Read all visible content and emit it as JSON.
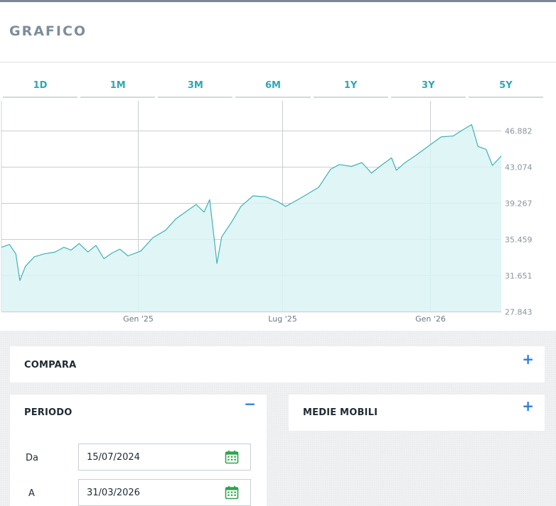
{
  "page": {
    "title": "GRAFICO"
  },
  "range_tabs": [
    "1D",
    "1M",
    "3M",
    "6M",
    "1Y",
    "3Y",
    "5Y"
  ],
  "chart_data": {
    "type": "area",
    "x_tick_labels": [
      "Gen '25",
      "Lug '25",
      "Gen '26"
    ],
    "y_ticks": [
      27.843,
      31.651,
      35.459,
      39.267,
      43.074,
      46.882
    ],
    "y_tick_labels": [
      "27.843",
      "31.651",
      "35.459",
      "39.267",
      "43.074",
      "46.882"
    ],
    "ylim": [
      27.843,
      50.0
    ],
    "xlim": [
      "2024-07-15",
      "2026-03-31"
    ],
    "grid": true,
    "line_color": "#3fb1b6",
    "fill_color": "#d9f3f4",
    "series": [
      {
        "values": [
          [
            "2024-07-15",
            34.6
          ],
          [
            "2024-07-25",
            34.9
          ],
          [
            "2024-08-02",
            33.9
          ],
          [
            "2024-08-07",
            31.1
          ],
          [
            "2024-08-14",
            32.6
          ],
          [
            "2024-08-25",
            33.6
          ],
          [
            "2024-09-06",
            33.9
          ],
          [
            "2024-09-20",
            34.1
          ],
          [
            "2024-10-01",
            34.6
          ],
          [
            "2024-10-10",
            34.3
          ],
          [
            "2024-10-20",
            35.0
          ],
          [
            "2024-10-31",
            34.1
          ],
          [
            "2024-11-10",
            34.8
          ],
          [
            "2024-11-20",
            33.4
          ],
          [
            "2024-11-30",
            34.0
          ],
          [
            "2024-12-10",
            34.4
          ],
          [
            "2024-12-20",
            33.7
          ],
          [
            "2025-01-05",
            34.2
          ],
          [
            "2025-01-20",
            35.6
          ],
          [
            "2025-02-05",
            36.4
          ],
          [
            "2025-02-18",
            37.6
          ],
          [
            "2025-03-05",
            38.5
          ],
          [
            "2025-03-15",
            39.1
          ],
          [
            "2025-03-25",
            38.3
          ],
          [
            "2025-04-01",
            39.6
          ],
          [
            "2025-04-08",
            34.5
          ],
          [
            "2025-04-10",
            32.9
          ],
          [
            "2025-04-16",
            35.7
          ],
          [
            "2025-04-28",
            37.2
          ],
          [
            "2025-05-10",
            38.9
          ],
          [
            "2025-05-25",
            40.0
          ],
          [
            "2025-06-10",
            39.9
          ],
          [
            "2025-06-25",
            39.4
          ],
          [
            "2025-07-05",
            38.9
          ],
          [
            "2025-07-20",
            39.6
          ],
          [
            "2025-08-01",
            40.2
          ],
          [
            "2025-08-15",
            40.9
          ],
          [
            "2025-08-30",
            42.8
          ],
          [
            "2025-09-10",
            43.3
          ],
          [
            "2025-09-25",
            43.1
          ],
          [
            "2025-10-08",
            43.5
          ],
          [
            "2025-10-20",
            42.4
          ],
          [
            "2025-11-01",
            43.2
          ],
          [
            "2025-11-14",
            44.0
          ],
          [
            "2025-11-20",
            42.7
          ],
          [
            "2025-12-01",
            43.5
          ],
          [
            "2025-12-15",
            44.3
          ],
          [
            "2026-01-05",
            45.6
          ],
          [
            "2026-01-15",
            46.2
          ],
          [
            "2026-01-30",
            46.3
          ],
          [
            "2026-02-10",
            46.9
          ],
          [
            "2026-02-22",
            47.5
          ],
          [
            "2026-03-02",
            45.2
          ],
          [
            "2026-03-12",
            44.9
          ],
          [
            "2026-03-20",
            43.2
          ],
          [
            "2026-03-31",
            44.2
          ]
        ]
      }
    ]
  },
  "compare_panel": {
    "label": "COMPARA",
    "toggle": "+"
  },
  "period_panel": {
    "label": "PERIODO",
    "toggle": "−",
    "from_label": "Da",
    "from_value": "15/07/2024",
    "to_label": "A",
    "to_value": "31/03/2026",
    "icon": "calendar-icon"
  },
  "moving_averages_panel": {
    "label": "MEDIE MOBILI",
    "toggle": "+"
  }
}
